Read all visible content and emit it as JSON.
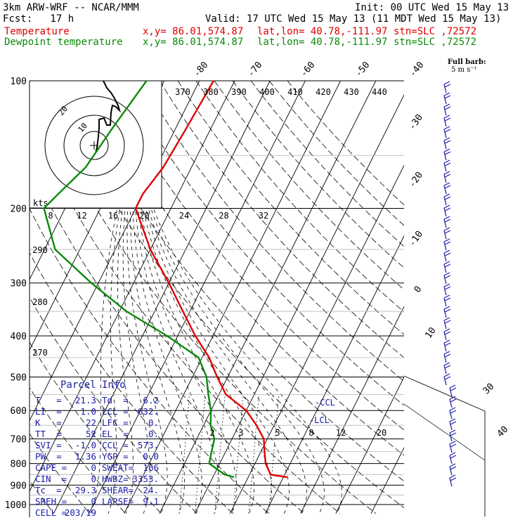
{
  "header": {
    "model": "3km ARW-WRF -- NCAR/MMM",
    "fcst": "Fcst:   17 h",
    "init": "Init: 00 UTC Wed 15 May 13",
    "valid": "Valid: 17 UTC Wed 15 May 13 (11 MDT Wed 15 May 13)",
    "temp_label": "Temperature",
    "dewp_label": "Dewpoint temperature",
    "xy": "x,y= 86.01,574.87",
    "latlon": "lat,lon= 40.78,-111.97",
    "stn": "stn=SLC ,72572"
  },
  "barb_label": {
    "line1": "Full barb:",
    "line2": "5 m s⁻¹"
  },
  "hodo": {
    "kts": "kts",
    "ring_labels": [
      "20",
      "10"
    ]
  },
  "parcel_info": {
    "title": "Parcel Info",
    "rows": [
      [
        "T   =",
        "21.3",
        "Td  =",
        "6.2"
      ],
      [
        "LI  =",
        "1.0",
        "LCL =",
        "632."
      ],
      [
        "K   =",
        "22",
        "LFC =",
        "0."
      ],
      [
        "TT  =",
        "52",
        "EL  =",
        "0."
      ],
      [
        "SVI =",
        "-1.0",
        "CCL =",
        "573."
      ],
      [
        "PW  =",
        "1.36",
        "YGP =",
        "0.0"
      ],
      [
        "CAPE =",
        "0",
        "SWEAT=",
        "166"
      ],
      [
        "CIN  =",
        "0",
        "HWBZ=",
        "3353."
      ],
      [
        "Tc  =",
        "29.3",
        "SHEAR=",
        "24."
      ],
      [
        "SREH =",
        "0",
        "LAPSE=",
        "9.1"
      ],
      [
        "CELL =",
        "203/19",
        "",
        ""
      ]
    ]
  },
  "colors": {
    "temperature": "#e00000",
    "dewpoint": "#0a8a0a",
    "barbs": "#1a1aa8",
    "isobar": "#000000"
  },
  "chart_data": {
    "type": "line",
    "title": "",
    "pressure_levels": [
      "100",
      "200",
      "300",
      "400",
      "500",
      "600",
      "700",
      "800",
      "900",
      "1000"
    ],
    "temp_ticks_top": [
      "-80",
      "-70",
      "-60",
      "-50",
      "-40"
    ],
    "temp_ticks_right": [
      "-30",
      "-20",
      "-10",
      "0",
      "10"
    ],
    "diag_ticks": [
      "30",
      "40"
    ],
    "theta_labels": [
      "370",
      "380",
      "390",
      "400",
      "410",
      "420",
      "430",
      "440"
    ],
    "mixing_ratio_labels": [
      "8",
      "12",
      "16",
      "20",
      "24",
      "28",
      "32"
    ],
    "dry_adiabat_labels": [
      "290",
      "280",
      "270"
    ],
    "mixing_ratio_low": [
      "2",
      "3",
      "5",
      "8",
      "12",
      "20"
    ],
    "annotations": [
      "-CCL",
      "-LCL"
    ],
    "series": [
      {
        "name": "Temperature",
        "color": "#e00000",
        "points": [
          [
            100,
            -56
          ],
          [
            130,
            -57
          ],
          [
            160,
            -58
          ],
          [
            185,
            -60
          ],
          [
            200,
            -60
          ],
          [
            250,
            -50
          ],
          [
            300,
            -40
          ],
          [
            350,
            -32
          ],
          [
            400,
            -25
          ],
          [
            450,
            -18
          ],
          [
            500,
            -13
          ],
          [
            550,
            -8
          ],
          [
            600,
            0
          ],
          [
            650,
            5
          ],
          [
            700,
            9
          ],
          [
            750,
            11
          ],
          [
            800,
            13
          ],
          [
            850,
            16
          ],
          [
            862,
            21
          ]
        ]
      },
      {
        "name": "Dewpoint temperature",
        "color": "#0a8a0a",
        "points": [
          [
            100,
            -75
          ],
          [
            130,
            -78
          ],
          [
            160,
            -80
          ],
          [
            185,
            -84
          ],
          [
            200,
            -86
          ],
          [
            250,
            -77
          ],
          [
            300,
            -62
          ],
          [
            350,
            -48
          ],
          [
            400,
            -33
          ],
          [
            450,
            -21
          ],
          [
            500,
            -16
          ],
          [
            550,
            -13
          ],
          [
            600,
            -10
          ],
          [
            650,
            -8
          ],
          [
            700,
            -5
          ],
          [
            750,
            -4
          ],
          [
            800,
            -3
          ],
          [
            850,
            3
          ],
          [
            862,
            6
          ]
        ]
      }
    ]
  }
}
